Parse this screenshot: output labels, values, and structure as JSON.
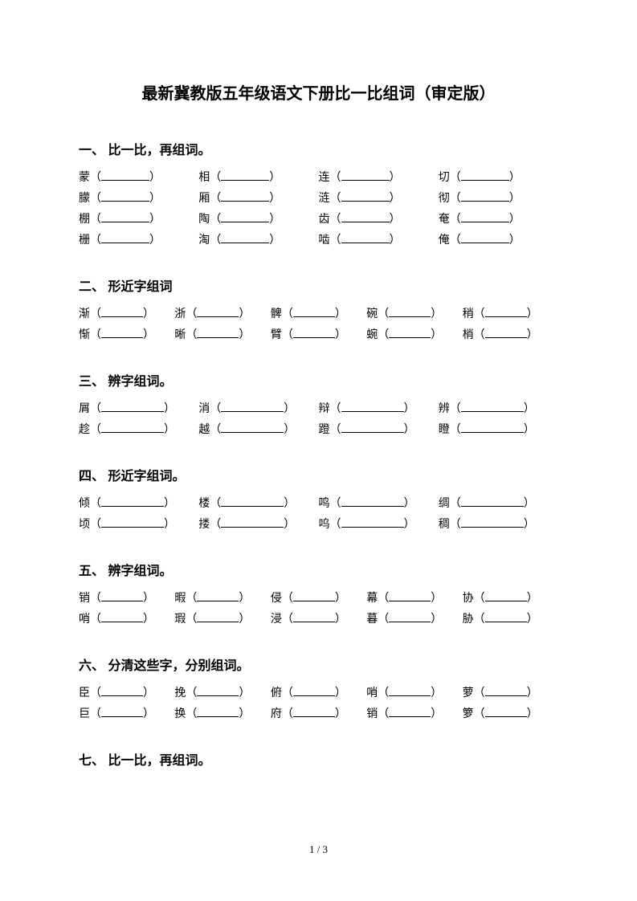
{
  "title": "最新冀教版五年级语文下册比一比组词（审定版）",
  "sections": [
    {
      "heading": "一、 比一比，再组词。",
      "class": "s1",
      "rows": [
        [
          "蒙",
          "相",
          "连",
          "切"
        ],
        [
          "朦",
          "厢",
          "涟",
          "彻"
        ],
        [
          "棚",
          "陶",
          "齿",
          "奄"
        ],
        [
          "栅",
          "淘",
          "啮",
          "俺"
        ]
      ]
    },
    {
      "heading": "二、 形近字组词",
      "class": "s2",
      "rows": [
        [
          "渐",
          "浙",
          "髀",
          "碗",
          "稍"
        ],
        [
          "惭",
          "晰",
          "臂",
          "蜿",
          "梢"
        ]
      ]
    },
    {
      "heading": "三、 辨字组词。",
      "class": "s3",
      "rows": [
        [
          "屑",
          "消",
          "辩",
          "辨"
        ],
        [
          "趁",
          "越",
          "蹬",
          "瞪"
        ]
      ]
    },
    {
      "heading": "四、 形近字组词。",
      "class": "s4",
      "rows": [
        [
          "倾",
          "楼",
          "鸣",
          "绸"
        ],
        [
          "顷",
          "搂",
          "呜",
          "稠"
        ]
      ]
    },
    {
      "heading": "五、 辨字组词。",
      "class": "s5",
      "rows": [
        [
          "销",
          "暇",
          "侵",
          "幕",
          "协"
        ],
        [
          "哨",
          "瑕",
          "浸",
          "暮",
          "胁"
        ]
      ]
    },
    {
      "heading": "六、 分清这些字，分别组词。",
      "class": "s6",
      "rows": [
        [
          "臣",
          "挽",
          "俯",
          "哨",
          "萝"
        ],
        [
          "巨",
          "换",
          "府",
          "销",
          "箩"
        ]
      ]
    },
    {
      "heading": "七、 比一比，再组词。",
      "class": "s7",
      "rows": []
    }
  ],
  "footer": "1 / 3"
}
